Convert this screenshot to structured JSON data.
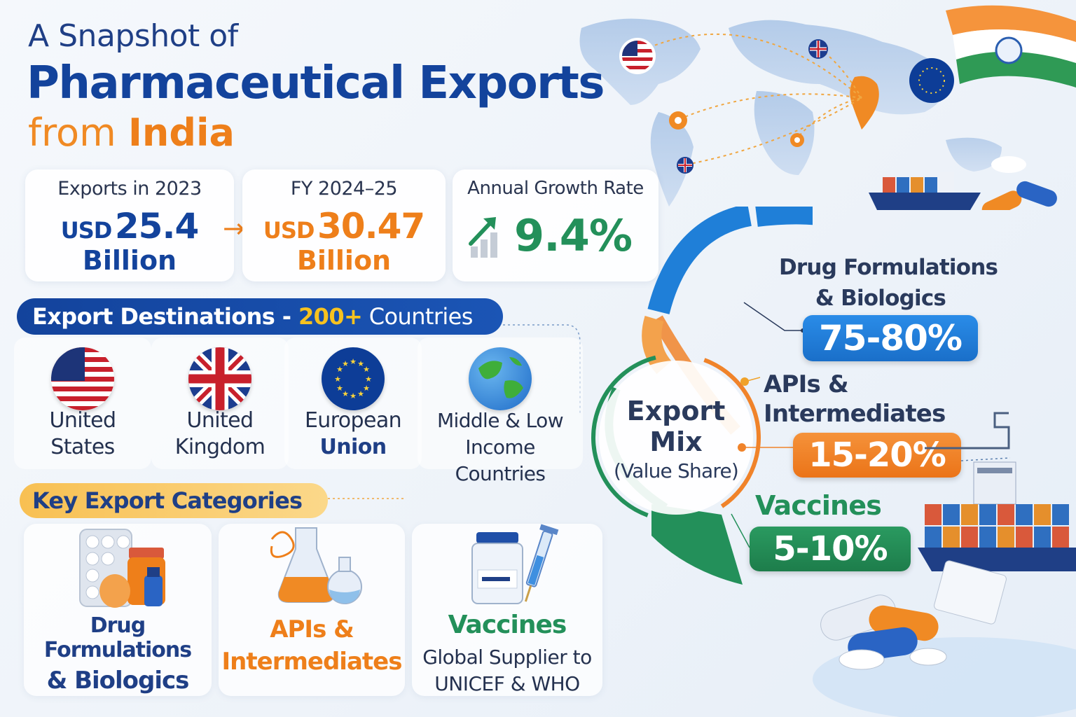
{
  "title": {
    "line1": "A Snapshot of",
    "line2": "Pharmaceutical Exports",
    "line3_prefix": "from",
    "line3_highlight": "India"
  },
  "stats": {
    "exports_2023": {
      "label": "Exports in 2023",
      "currency": "USD",
      "value": "25.4",
      "unit": "Billion"
    },
    "fy_2024_25": {
      "label": "FY 2024–25",
      "currency": "USD",
      "value": "30.47",
      "unit": "Billion"
    },
    "growth": {
      "label": "Annual Growth Rate",
      "value": "9.4%"
    }
  },
  "destinations": {
    "heading_prefix": "Export Destinations - ",
    "heading_count": "200+",
    "heading_suffix": " Countries",
    "items": [
      {
        "line1": "United",
        "line2": "States",
        "icon": "us-flag-icon"
      },
      {
        "line1": "United",
        "line2": "Kingdom",
        "icon": "uk-flag-icon"
      },
      {
        "line1": "European",
        "line2": "Union",
        "icon": "eu-flag-icon"
      },
      {
        "line1": "Middle & Low",
        "line2": "Income Countries",
        "icon": "globe-icon"
      }
    ]
  },
  "categories": {
    "heading": "Key Export Categories",
    "items": [
      {
        "line1": "Drug Formulations",
        "line2": "& Biologics",
        "icon": "pill-blister-icon"
      },
      {
        "line1": "APIs &",
        "line2": "Intermediates",
        "icon": "flask-icon"
      },
      {
        "line1": "Vaccines",
        "sub1": "Global Supplier to",
        "sub2": "UNICEF & WHO",
        "icon": "vaccine-vial-icon"
      }
    ]
  },
  "export_mix": {
    "center_line1": "Export",
    "center_line2": "Mix",
    "center_line3": "(Value Share)",
    "segments": [
      {
        "line1": "Drug Formulations",
        "line2": "& Biologics",
        "share": "75-80%",
        "color": "#1f7fd8"
      },
      {
        "line1": "APIs &",
        "line2": "Intermediates",
        "share": "15-20%",
        "color": "#f0832a"
      },
      {
        "line1": "Vaccines",
        "line2": "",
        "share": "5-10%",
        "color": "#23905a"
      }
    ]
  },
  "colors": {
    "blue": "#13439c",
    "orange": "#ee7f1a",
    "green": "#23905a"
  }
}
